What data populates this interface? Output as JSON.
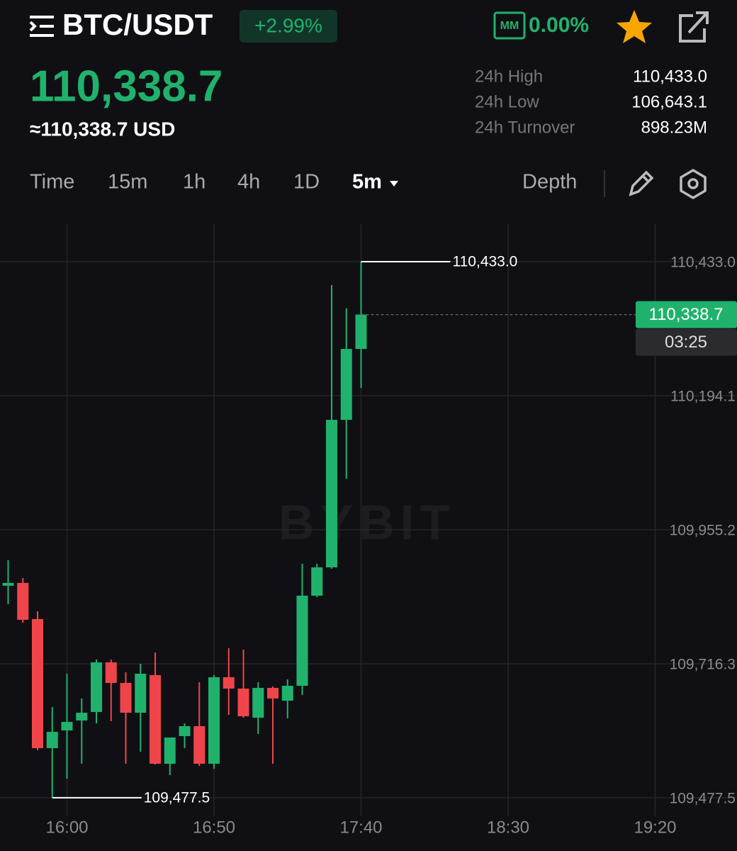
{
  "header": {
    "pair": "BTC/USDT",
    "change": "+2.99%",
    "mm_badge": "MM",
    "mm_value": "0.00%",
    "last_price": "110,338.7",
    "fiat_price": "≈110,338.7 USD",
    "stats": [
      {
        "label": "24h High",
        "value": "110,433.0"
      },
      {
        "label": "24h Low",
        "value": "106,643.1"
      },
      {
        "label": "24h Turnover",
        "value": "898.23M"
      }
    ]
  },
  "tabs": [
    "Time",
    "15m",
    "1h",
    "4h",
    "1D",
    "5m",
    "Depth"
  ],
  "chart_data": {
    "type": "candlestick",
    "watermark": "BYBIT",
    "up_color": "#20b26c",
    "down_color": "#ef454a",
    "open": [
      109855.4,
      109860.4,
      109796.0,
      109565.9,
      109597.5,
      109615.2,
      109630.4,
      109718.8,
      109682.2,
      109629.1,
      109696.1,
      109538.1,
      109587.4,
      109605.1,
      109538.1,
      109692.3,
      109672.1,
      109620.2,
      109673.3,
      109650.6,
      109677.1,
      109837.7,
      109888.2,
      110151.1,
      110277.5
    ],
    "high": [
      109900.9,
      109869.3,
      109809.9,
      109639.2,
      109698.6,
      109654.4,
      109723.9,
      109723.9,
      109701.1,
      109716.3,
      109736.5,
      109584.9,
      109610.1,
      109683.5,
      109696.1,
      109744.1,
      109741.6,
      109683.5,
      109675.9,
      109688.5,
      109894.5,
      109894.5,
      110391.3,
      110350.0,
      110433.0
    ],
    "low": [
      109822.5,
      109789.6,
      109562.1,
      109477.5,
      109511.5,
      109538.1,
      109610.1,
      109613.9,
      109538.1,
      109559.6,
      109536.8,
      109517.9,
      109565.9,
      109534.3,
      109529.2,
      109625.3,
      109620.2,
      109591.2,
      109538.1,
      109619.0,
      109660.7,
      109835.1,
      109885.7,
      110046.2,
      110208.0
    ],
    "close": [
      109860.4,
      109794.7,
      109565.9,
      109595.0,
      109612.7,
      109629.1,
      109718.8,
      109682.2,
      109629.1,
      109698.6,
      109538.1,
      109584.9,
      109605.1,
      109538.1,
      109692.3,
      109672.1,
      109622.8,
      109673.3,
      109654.4,
      109677.1,
      109837.7,
      109888.2,
      110151.1,
      110277.5,
      110338.7
    ],
    "xtick_labels": [
      "16:00",
      "16:50",
      "17:40",
      "18:30",
      "19:20"
    ],
    "ylim": [
      109445.8,
      110500.0
    ],
    "yticks": [
      {
        "value": 110433.0,
        "label": "110,433.0"
      },
      {
        "value": 110194.1,
        "label": "110,194.1"
      },
      {
        "value": 109955.2,
        "label": "109,955.2"
      },
      {
        "value": 109716.3,
        "label": "109,716.3"
      },
      {
        "value": 109477.5,
        "label": "109,477.5"
      }
    ],
    "high_marker": {
      "value": 110433.0,
      "label": "110,433.0"
    },
    "low_marker": {
      "value": 109477.5,
      "label": "109,477.5"
    },
    "current_price": {
      "value": 110338.7,
      "label": "110,338.7"
    },
    "countdown": "03:25",
    "grid": true
  }
}
